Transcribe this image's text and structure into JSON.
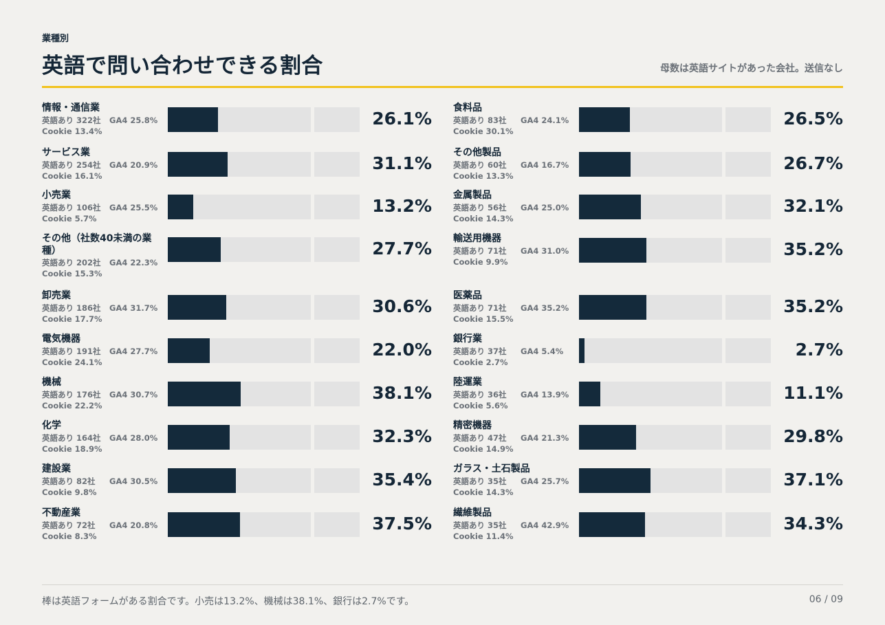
{
  "header": {
    "kicker": "業種別",
    "title": "英語で問い合わせできる割合",
    "note": "母数は英語サイトがあった会社。送信なし"
  },
  "footer": {
    "text": "棒は英語フォームがある割合です。小売は13.2%、機械は38.1%、銀行は2.7%です。",
    "page": "06 / 09"
  },
  "colors": {
    "bar": "#142a3b",
    "track": "#e3e3e3",
    "accent": "#f2c21b"
  },
  "chart_data": {
    "type": "bar",
    "orientation": "horizontal",
    "xlim": [
      0,
      100
    ],
    "unit": "%",
    "columns": [
      [
        {
          "name": "情報・通信業",
          "count": "英語あり 322社",
          "ga4": "GA4 25.8%",
          "cookie": "Cookie 13.4%",
          "value": 26.1,
          "label": "26.1%"
        },
        {
          "name": "サービス業",
          "count": "英語あり 254社",
          "ga4": "GA4 20.9%",
          "cookie": "Cookie 16.1%",
          "value": 31.1,
          "label": "31.1%"
        },
        {
          "name": "小売業",
          "count": "英語あり 106社",
          "ga4": "GA4 25.5%",
          "cookie": "Cookie 5.7%",
          "value": 13.2,
          "label": "13.2%"
        },
        {
          "name": "その他（社数40未満の業種）",
          "count": "英語あり 202社",
          "ga4": "GA4 22.3%",
          "cookie": "Cookie 15.3%",
          "value": 27.7,
          "label": "27.7%"
        },
        {
          "name": "卸売業",
          "count": "英語あり 186社",
          "ga4": "GA4 31.7%",
          "cookie": "Cookie 17.7%",
          "value": 30.6,
          "label": "30.6%"
        },
        {
          "name": "電気機器",
          "count": "英語あり 191社",
          "ga4": "GA4 27.7%",
          "cookie": "Cookie 24.1%",
          "value": 22.0,
          "label": "22.0%"
        },
        {
          "name": "機械",
          "count": "英語あり 176社",
          "ga4": "GA4 30.7%",
          "cookie": "Cookie 22.2%",
          "value": 38.1,
          "label": "38.1%"
        },
        {
          "name": "化学",
          "count": "英語あり 164社",
          "ga4": "GA4 28.0%",
          "cookie": "Cookie 18.9%",
          "value": 32.3,
          "label": "32.3%"
        },
        {
          "name": "建設業",
          "count": "英語あり 82社",
          "ga4": "GA4 30.5%",
          "cookie": "Cookie 9.8%",
          "value": 35.4,
          "label": "35.4%"
        },
        {
          "name": "不動産業",
          "count": "英語あり 72社",
          "ga4": "GA4 20.8%",
          "cookie": "Cookie 8.3%",
          "value": 37.5,
          "label": "37.5%"
        }
      ],
      [
        {
          "name": "食料品",
          "count": "英語あり 83社",
          "ga4": "GA4 24.1%",
          "cookie": "Cookie 30.1%",
          "value": 26.5,
          "label": "26.5%"
        },
        {
          "name": "その他製品",
          "count": "英語あり 60社",
          "ga4": "GA4 16.7%",
          "cookie": "Cookie 13.3%",
          "value": 26.7,
          "label": "26.7%"
        },
        {
          "name": "金属製品",
          "count": "英語あり 56社",
          "ga4": "GA4 25.0%",
          "cookie": "Cookie 14.3%",
          "value": 32.1,
          "label": "32.1%"
        },
        {
          "name": "輸送用機器",
          "count": "英語あり 71社",
          "ga4": "GA4 31.0%",
          "cookie": "Cookie 9.9%",
          "value": 35.2,
          "label": "35.2%"
        },
        {
          "name": "医薬品",
          "count": "英語あり 71社",
          "ga4": "GA4 35.2%",
          "cookie": "Cookie 15.5%",
          "value": 35.2,
          "label": "35.2%"
        },
        {
          "name": "銀行業",
          "count": "英語あり 37社",
          "ga4": "GA4 5.4%",
          "cookie": "Cookie 2.7%",
          "value": 2.7,
          "label": "2.7%"
        },
        {
          "name": "陸運業",
          "count": "英語あり 36社",
          "ga4": "GA4 13.9%",
          "cookie": "Cookie 5.6%",
          "value": 11.1,
          "label": "11.1%"
        },
        {
          "name": "精密機器",
          "count": "英語あり 47社",
          "ga4": "GA4 21.3%",
          "cookie": "Cookie 14.9%",
          "value": 29.8,
          "label": "29.8%"
        },
        {
          "name": "ガラス・土石製品",
          "count": "英語あり 35社",
          "ga4": "GA4 25.7%",
          "cookie": "Cookie 14.3%",
          "value": 37.1,
          "label": "37.1%"
        },
        {
          "name": "繊維製品",
          "count": "英語あり 35社",
          "ga4": "GA4 42.9%",
          "cookie": "Cookie 11.4%",
          "value": 34.3,
          "label": "34.3%"
        }
      ]
    ]
  }
}
